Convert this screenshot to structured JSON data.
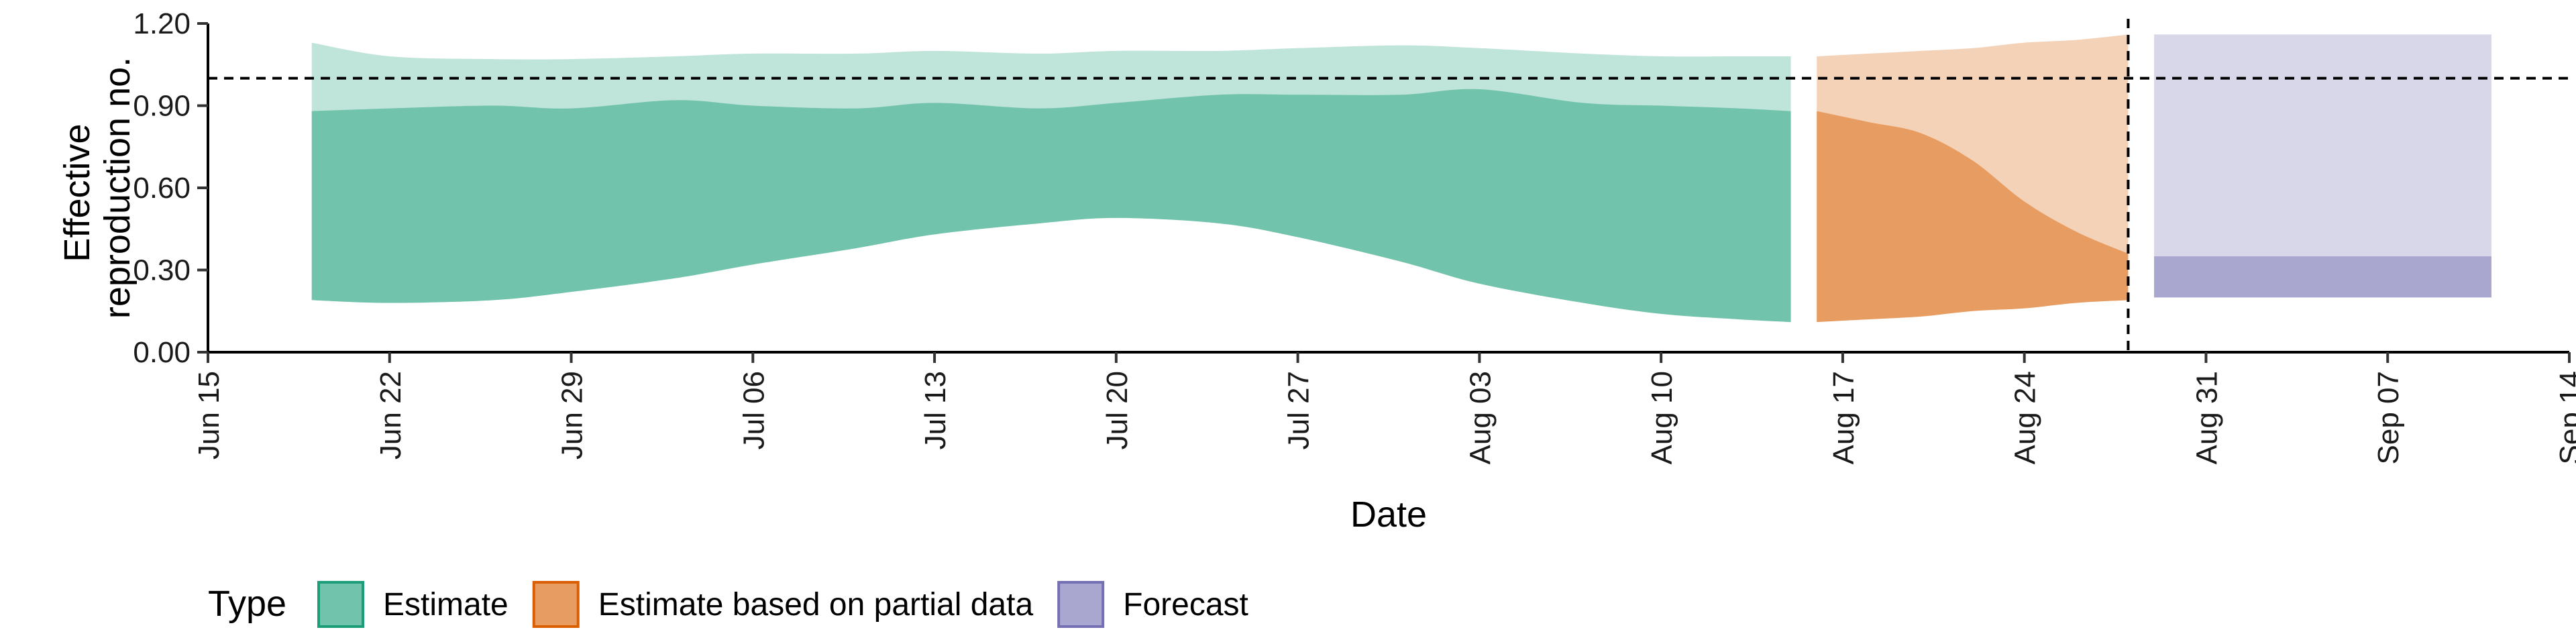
{
  "chart_data": {
    "type": "area",
    "xlabel": "Date",
    "ylabel_lines": [
      "Effective",
      "reproduction no."
    ],
    "x_ticks": [
      "2020-06-15",
      "2020-06-22",
      "2020-06-29",
      "2020-07-06",
      "2020-07-13",
      "2020-07-20",
      "2020-07-27",
      "2020-08-03",
      "2020-08-10",
      "2020-08-17",
      "2020-08-24",
      "2020-08-31",
      "2020-09-07",
      "2020-09-14"
    ],
    "x_tick_labels": [
      "Jun 15",
      "Jun 22",
      "Jun 29",
      "Jul 06",
      "Jul 13",
      "Jul 20",
      "Jul 27",
      "Aug 03",
      "Aug 10",
      "Aug 17",
      "Aug 24",
      "Aug 31",
      "Sep 07",
      "Sep 14"
    ],
    "y_ticks": [
      0.0,
      0.3,
      0.6,
      0.9,
      1.2
    ],
    "y_tick_labels": [
      "0.00",
      "0.30",
      "0.60",
      "0.90",
      "1.20"
    ],
    "xlim": [
      "2020-06-15",
      "2020-09-14"
    ],
    "ylim": [
      0.0,
      1.2
    ],
    "reference_line_y": 1.0,
    "vertical_line_x": "2020-08-28",
    "legend_title": "Type",
    "legend_position": "bottom",
    "series": [
      {
        "name": "Estimate",
        "color": "#1b9e77",
        "x": [
          "2020-06-19",
          "2020-06-22",
          "2020-06-26",
          "2020-06-29",
          "2020-07-03",
          "2020-07-06",
          "2020-07-10",
          "2020-07-13",
          "2020-07-17",
          "2020-07-20",
          "2020-07-24",
          "2020-07-27",
          "2020-07-31",
          "2020-08-03",
          "2020-08-07",
          "2020-08-10",
          "2020-08-13",
          "2020-08-15"
        ],
        "lower_90": [
          0.19,
          0.18,
          0.19,
          0.22,
          0.27,
          0.32,
          0.38,
          0.43,
          0.47,
          0.49,
          0.47,
          0.42,
          0.33,
          0.25,
          0.18,
          0.14,
          0.12,
          0.11
        ],
        "upper_50": [
          0.88,
          0.89,
          0.9,
          0.89,
          0.92,
          0.9,
          0.89,
          0.91,
          0.89,
          0.91,
          0.94,
          0.94,
          0.94,
          0.96,
          0.91,
          0.9,
          0.89,
          0.88
        ],
        "upper_90": [
          1.13,
          1.08,
          1.07,
          1.07,
          1.08,
          1.09,
          1.09,
          1.1,
          1.09,
          1.1,
          1.1,
          1.11,
          1.12,
          1.11,
          1.09,
          1.08,
          1.08,
          1.08
        ]
      },
      {
        "name": "Estimate based on partial data",
        "color": "#d95f02",
        "x": [
          "2020-08-16",
          "2020-08-18",
          "2020-08-20",
          "2020-08-22",
          "2020-08-24",
          "2020-08-26",
          "2020-08-28"
        ],
        "lower_90": [
          0.11,
          0.12,
          0.13,
          0.15,
          0.16,
          0.18,
          0.19
        ],
        "upper_50": [
          0.88,
          0.84,
          0.8,
          0.7,
          0.55,
          0.44,
          0.36
        ],
        "upper_90": [
          1.08,
          1.09,
          1.1,
          1.11,
          1.13,
          1.14,
          1.16
        ]
      },
      {
        "name": "Forecast",
        "color": "#7570b3",
        "x": [
          "2020-08-29",
          "2020-09-11"
        ],
        "lower_90": [
          0.2,
          0.2
        ],
        "upper_50": [
          0.35,
          0.35
        ],
        "upper_90": [
          1.16,
          1.16
        ]
      }
    ]
  }
}
